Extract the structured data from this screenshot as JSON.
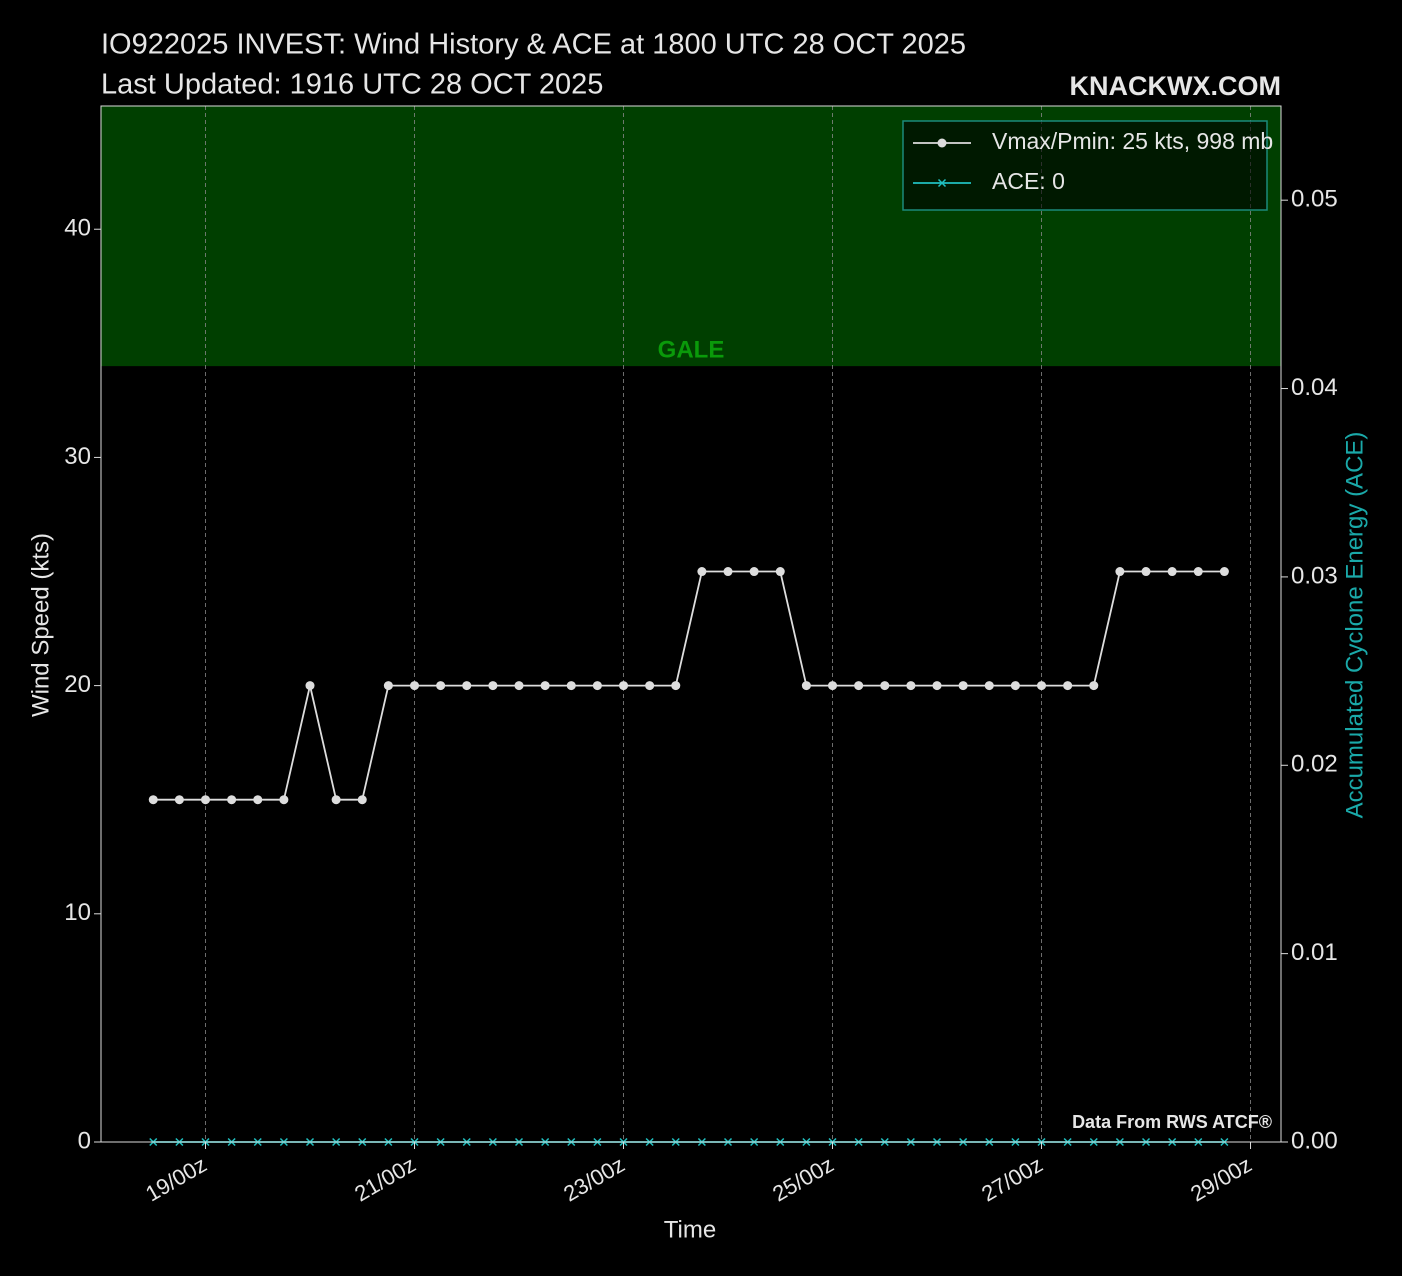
{
  "chart_data": {
    "type": "line",
    "title": "IO922025 INVEST: Wind History & ACE at 1800 UTC 28 OCT 2025",
    "subtitle": "Last Updated: 1916 UTC 28 OCT 2025",
    "watermark": "KNACKWX.COM",
    "source": "Data From RWS ATCF®",
    "x_label": "Time",
    "y_label": "Wind Speed (kts)",
    "y2_label": "Accumulated Cyclone Energy (ACE)",
    "x": [
      "18/12z",
      "18/18z",
      "19/00z",
      "19/06z",
      "19/12z",
      "19/18z",
      "20/00z",
      "20/06z",
      "20/12z",
      "20/18z",
      "21/00z",
      "21/06z",
      "21/12z",
      "21/18z",
      "22/00z",
      "22/06z",
      "22/12z",
      "22/18z",
      "23/00z",
      "23/06z",
      "23/12z",
      "23/18z",
      "24/00z",
      "24/06z",
      "24/12z",
      "24/18z",
      "25/00z",
      "25/06z",
      "25/12z",
      "25/18z",
      "26/00z",
      "26/06z",
      "26/12z",
      "26/18z",
      "27/00z",
      "27/06z",
      "27/12z",
      "27/18z",
      "28/00z",
      "28/06z",
      "28/12z",
      "28/18z"
    ],
    "series": [
      {
        "name": "Vmax/Pmin: 25 kts, 998 mb",
        "color": "#dddddd",
        "marker": "circle",
        "values": [
          15,
          15,
          15,
          15,
          15,
          15,
          20,
          15,
          15,
          20,
          20,
          20,
          20,
          20,
          20,
          20,
          20,
          20,
          20,
          20,
          20,
          25,
          25,
          25,
          25,
          20,
          20,
          20,
          20,
          20,
          20,
          20,
          20,
          20,
          20,
          20,
          20,
          25,
          25,
          25,
          25,
          25
        ]
      },
      {
        "name": "ACE: 0",
        "color": "#20c0c0",
        "marker": "x",
        "axis": "y2",
        "values": [
          0,
          0,
          0,
          0,
          0,
          0,
          0,
          0,
          0,
          0,
          0,
          0,
          0,
          0,
          0,
          0,
          0,
          0,
          0,
          0,
          0,
          0,
          0,
          0,
          0,
          0,
          0,
          0,
          0,
          0,
          0,
          0,
          0,
          0,
          0,
          0,
          0,
          0,
          0,
          0,
          0,
          0
        ]
      }
    ],
    "xlim": [
      "18/00z",
      "29/07z"
    ],
    "xticks": [
      "19/00z",
      "21/00z",
      "23/00z",
      "25/00z",
      "27/00z",
      "29/00z"
    ],
    "ylim": [
      0,
      45.4
    ],
    "yticks": [
      0,
      10,
      20,
      30,
      40
    ],
    "y2lim": [
      0,
      0.055
    ],
    "y2ticks": [
      {
        "value": 0,
        "label": "0.00"
      },
      {
        "value": 0.01,
        "label": "0.01"
      },
      {
        "value": 0.02,
        "label": "0.02"
      },
      {
        "value": 0.03,
        "label": "0.03"
      },
      {
        "value": 0.04,
        "label": "0.04"
      },
      {
        "value": 0.05,
        "label": "0.05"
      }
    ],
    "bands": [
      {
        "label": "GALE",
        "from": 34,
        "to": 45.4,
        "color": "#003f00",
        "label_color": "#0a9a0a"
      }
    ],
    "grid": true,
    "legend": "upper right"
  }
}
